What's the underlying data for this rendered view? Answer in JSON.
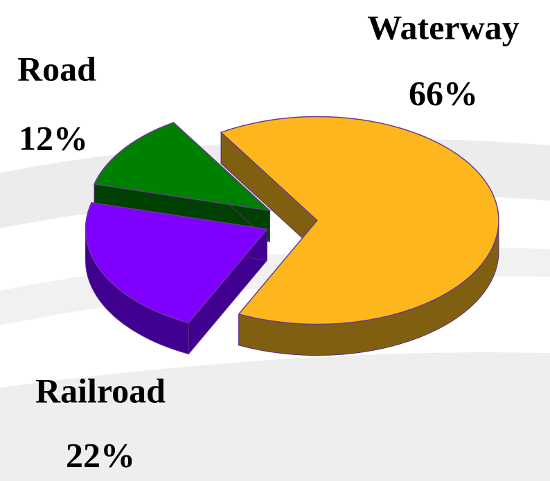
{
  "chart_data": {
    "type": "pie3d",
    "categories": [
      "Waterway",
      "Railroad",
      "Road"
    ],
    "values": [
      66,
      22,
      12
    ],
    "value_labels": [
      "66%",
      "22%",
      "12%"
    ],
    "colors": [
      "#FDB71C",
      "#8000FF",
      "#008000"
    ],
    "side_colors": [
      "#806010",
      "#400090",
      "#004000"
    ]
  }
}
